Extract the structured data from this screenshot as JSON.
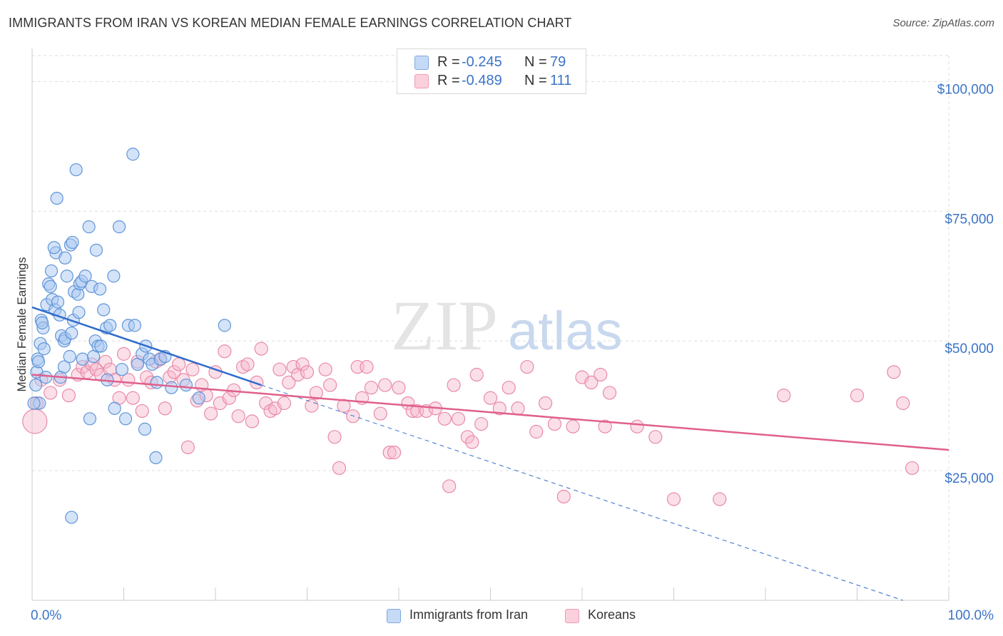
{
  "header": {
    "title": "IMMIGRANTS FROM IRAN VS KOREAN MEDIAN FEMALE EARNINGS CORRELATION CHART",
    "source": "Source: ZipAtlas.com"
  },
  "watermark": {
    "zip": "ZIP",
    "atlas": "atlas"
  },
  "legend": {
    "r_label": "R =",
    "n_label": "N =",
    "rows": [
      {
        "r": "-0.245",
        "n": "79",
        "color": "#a9c8f2"
      },
      {
        "r": "-0.489",
        "n": "111",
        "color": "#f7b8cc"
      }
    ]
  },
  "colors": {
    "blue_fill": "#a9c8f2",
    "blue_stroke": "#5f95d8",
    "blue_line": "#2f6ccc",
    "pink_fill": "#f7b8cc",
    "pink_stroke": "#e88aa8",
    "pink_line": "#e0608c",
    "tick_label": "#3b74c7",
    "grid": "#dddddd"
  },
  "chart_data": {
    "type": "scatter",
    "title": "IMMIGRANTS FROM IRAN VS KOREAN MEDIAN FEMALE EARNINGS CORRELATION CHART",
    "xlabel": "",
    "ylabel": "Median Female Earnings",
    "xlim": [
      0,
      100
    ],
    "ylim": [
      0,
      105000
    ],
    "x_tick_labels": [
      "0.0%",
      "100.0%"
    ],
    "y_ticks": [
      25000,
      50000,
      75000,
      100000
    ],
    "y_tick_labels": [
      "$25,000",
      "$50,000",
      "$75,000",
      "$100,000"
    ],
    "grid": true,
    "legend_position": "top-center",
    "series": [
      {
        "name": "Immigrants from Iran",
        "r": -0.245,
        "n": 79,
        "trend": {
          "x0": 0,
          "y0": 56500,
          "x1": 25,
          "y1": 41500,
          "dashed_to_x": 95,
          "dashed_to_y": 0
        },
        "points": [
          [
            0.5,
            44000
          ],
          [
            0.8,
            38000
          ],
          [
            0.6,
            46500
          ],
          [
            1,
            54000
          ],
          [
            1.2,
            52500
          ],
          [
            0.9,
            49500
          ],
          [
            1.3,
            48500
          ],
          [
            1.5,
            43000
          ],
          [
            1.1,
            53500
          ],
          [
            0.7,
            46000
          ],
          [
            1.8,
            61000
          ],
          [
            1.6,
            57000
          ],
          [
            2,
            60500
          ],
          [
            2.2,
            58000
          ],
          [
            2.5,
            56000
          ],
          [
            2.8,
            57500
          ],
          [
            3,
            55000
          ],
          [
            3.2,
            51000
          ],
          [
            3.5,
            50000
          ],
          [
            3.6,
            50500
          ],
          [
            2.1,
            63500
          ],
          [
            2.6,
            67000
          ],
          [
            2.4,
            68000
          ],
          [
            3.8,
            62500
          ],
          [
            3.6,
            66000
          ],
          [
            4.2,
            68500
          ],
          [
            4.4,
            69000
          ],
          [
            4.6,
            59500
          ],
          [
            5,
            59000
          ],
          [
            5.2,
            61000
          ],
          [
            5.4,
            61500
          ],
          [
            5.8,
            62500
          ],
          [
            6.2,
            72000
          ],
          [
            6.5,
            60500
          ],
          [
            7,
            67500
          ],
          [
            7.4,
            60000
          ],
          [
            7.8,
            56000
          ],
          [
            8.1,
            52500
          ],
          [
            8.5,
            53000
          ],
          [
            8.9,
            62500
          ],
          [
            2.7,
            77500
          ],
          [
            4.8,
            83000
          ],
          [
            9.5,
            72000
          ],
          [
            11,
            86000
          ],
          [
            3.1,
            43000
          ],
          [
            3.5,
            45000
          ],
          [
            4.1,
            47000
          ],
          [
            4.3,
            51500
          ],
          [
            4.5,
            54000
          ],
          [
            5.1,
            55500
          ],
          [
            5.5,
            46500
          ],
          [
            6.3,
            35000
          ],
          [
            6.7,
            47000
          ],
          [
            6.9,
            50000
          ],
          [
            7.2,
            49000
          ],
          [
            7.5,
            49000
          ],
          [
            8.2,
            42500
          ],
          [
            9,
            37000
          ],
          [
            9.8,
            44500
          ],
          [
            10.2,
            35000
          ],
          [
            10.5,
            53000
          ],
          [
            11.2,
            53000
          ],
          [
            11.5,
            45500
          ],
          [
            12,
            47500
          ],
          [
            12.4,
            49000
          ],
          [
            12.8,
            46500
          ],
          [
            13.1,
            45500
          ],
          [
            13.6,
            42000
          ],
          [
            14,
            46500
          ],
          [
            14.5,
            47000
          ],
          [
            15.2,
            41000
          ],
          [
            16.8,
            41500
          ],
          [
            18.2,
            39000
          ],
          [
            21,
            53000
          ],
          [
            4.3,
            16000
          ],
          [
            12.3,
            33000
          ],
          [
            13.5,
            27500
          ],
          [
            0.2,
            38000
          ],
          [
            0.4,
            41500
          ]
        ]
      },
      {
        "name": "Koreans",
        "r": -0.489,
        "n": 111,
        "trend": {
          "x0": 0,
          "y0": 43500,
          "x1": 100,
          "y1": 29000
        },
        "points": [
          [
            0.3,
            34500
          ],
          [
            0.5,
            38000
          ],
          [
            1,
            42500
          ],
          [
            2,
            40000
          ],
          [
            3,
            42500
          ],
          [
            4,
            39500
          ],
          [
            5,
            43500
          ],
          [
            5.5,
            45000
          ],
          [
            6,
            44000
          ],
          [
            6.5,
            45500
          ],
          [
            7,
            44500
          ],
          [
            7.5,
            43500
          ],
          [
            8,
            46000
          ],
          [
            8.5,
            44500
          ],
          [
            9,
            42500
          ],
          [
            9.5,
            39000
          ],
          [
            10,
            47500
          ],
          [
            10.5,
            42500
          ],
          [
            11,
            39000
          ],
          [
            11.5,
            46000
          ],
          [
            12,
            36500
          ],
          [
            12.5,
            43000
          ],
          [
            13,
            42000
          ],
          [
            13.5,
            46000
          ],
          [
            14,
            46500
          ],
          [
            14.5,
            37000
          ],
          [
            15,
            43000
          ],
          [
            15.5,
            44000
          ],
          [
            16,
            45500
          ],
          [
            16.5,
            42500
          ],
          [
            17,
            29500
          ],
          [
            17.5,
            44500
          ],
          [
            18,
            38500
          ],
          [
            18.5,
            41500
          ],
          [
            19,
            39500
          ],
          [
            19.5,
            36000
          ],
          [
            20,
            44000
          ],
          [
            20.5,
            38000
          ],
          [
            21,
            48000
          ],
          [
            21.5,
            39000
          ],
          [
            22,
            40500
          ],
          [
            22.5,
            35500
          ],
          [
            23,
            45000
          ],
          [
            23.5,
            45500
          ],
          [
            24,
            34500
          ],
          [
            24.5,
            42000
          ],
          [
            25,
            48500
          ],
          [
            25.5,
            38000
          ],
          [
            26,
            36500
          ],
          [
            26.5,
            37000
          ],
          [
            27,
            44500
          ],
          [
            27.5,
            38000
          ],
          [
            28,
            42000
          ],
          [
            28.5,
            45000
          ],
          [
            29,
            43500
          ],
          [
            29.5,
            45500
          ],
          [
            30,
            44000
          ],
          [
            30.5,
            37500
          ],
          [
            31,
            40000
          ],
          [
            32,
            44500
          ],
          [
            32.5,
            41500
          ],
          [
            33,
            31500
          ],
          [
            33.5,
            25500
          ],
          [
            34,
            37500
          ],
          [
            35,
            35500
          ],
          [
            35.5,
            45000
          ],
          [
            36,
            39000
          ],
          [
            36.5,
            45000
          ],
          [
            37,
            41000
          ],
          [
            38,
            36000
          ],
          [
            38.5,
            41500
          ],
          [
            39,
            28500
          ],
          [
            39.5,
            28500
          ],
          [
            40,
            41000
          ],
          [
            41,
            38000
          ],
          [
            41.5,
            36500
          ],
          [
            42,
            36500
          ],
          [
            43,
            36500
          ],
          [
            44,
            37000
          ],
          [
            45,
            35000
          ],
          [
            45.5,
            22000
          ],
          [
            46,
            41500
          ],
          [
            46.5,
            35000
          ],
          [
            47.5,
            31500
          ],
          [
            48,
            30500
          ],
          [
            48.5,
            43500
          ],
          [
            49,
            34000
          ],
          [
            50,
            39000
          ],
          [
            51,
            37000
          ],
          [
            52,
            41000
          ],
          [
            53,
            37000
          ],
          [
            54,
            45000
          ],
          [
            55,
            32500
          ],
          [
            56,
            38000
          ],
          [
            57,
            34000
          ],
          [
            58,
            20000
          ],
          [
            59,
            33500
          ],
          [
            60,
            43000
          ],
          [
            61,
            42000
          ],
          [
            62,
            43500
          ],
          [
            62.5,
            33500
          ],
          [
            63,
            40000
          ],
          [
            66,
            33500
          ],
          [
            68,
            31500
          ],
          [
            70,
            19500
          ],
          [
            75,
            19500
          ],
          [
            82,
            39500
          ],
          [
            90,
            39500
          ],
          [
            94,
            44000
          ],
          [
            95,
            38000
          ],
          [
            96,
            25500
          ]
        ]
      }
    ]
  },
  "bottom_legend": [
    {
      "label": "Immigrants from Iran",
      "color": "#a9c8f2"
    },
    {
      "label": "Koreans",
      "color": "#f7b8cc"
    }
  ]
}
